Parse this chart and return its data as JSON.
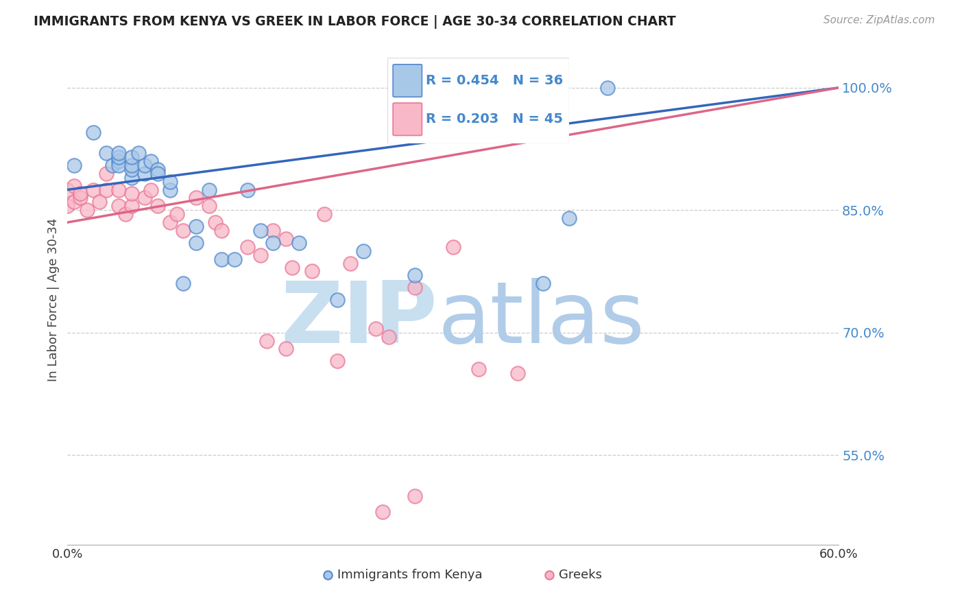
{
  "title": "IMMIGRANTS FROM KENYA VS GREEK IN LABOR FORCE | AGE 30-34 CORRELATION CHART",
  "source": "Source: ZipAtlas.com",
  "ylabel": "In Labor Force | Age 30-34",
  "xmin": 0.0,
  "xmax": 0.6,
  "ymin": 0.44,
  "ymax": 1.04,
  "yticks": [
    0.55,
    0.7,
    0.85,
    1.0
  ],
  "ytick_labels": [
    "55.0%",
    "70.0%",
    "85.0%",
    "100.0%"
  ],
  "kenya_R": 0.454,
  "kenya_N": 36,
  "greek_R": 0.203,
  "greek_N": 45,
  "kenya_color": "#a8c8e8",
  "greek_color": "#f8b8c8",
  "kenya_edge_color": "#5588cc",
  "greek_edge_color": "#e87898",
  "kenya_line_color": "#3366bb",
  "greek_line_color": "#dd6688",
  "background_color": "#ffffff",
  "watermark_zip_color": "#c8dff0",
  "watermark_atlas_color": "#b0cce8",
  "kenya_scatter_x": [
    0.005,
    0.02,
    0.03,
    0.035,
    0.04,
    0.04,
    0.04,
    0.04,
    0.05,
    0.05,
    0.05,
    0.05,
    0.055,
    0.06,
    0.06,
    0.065,
    0.07,
    0.07,
    0.08,
    0.08,
    0.09,
    0.1,
    0.1,
    0.11,
    0.12,
    0.13,
    0.14,
    0.15,
    0.16,
    0.18,
    0.21,
    0.23,
    0.27,
    0.37,
    0.39,
    0.42
  ],
  "kenya_scatter_y": [
    0.905,
    0.945,
    0.92,
    0.905,
    0.91,
    0.905,
    0.915,
    0.92,
    0.89,
    0.9,
    0.905,
    0.915,
    0.92,
    0.895,
    0.905,
    0.91,
    0.9,
    0.895,
    0.875,
    0.885,
    0.76,
    0.83,
    0.81,
    0.875,
    0.79,
    0.79,
    0.875,
    0.825,
    0.81,
    0.81,
    0.74,
    0.8,
    0.77,
    0.76,
    0.84,
    1.0
  ],
  "greek_scatter_x": [
    0.0,
    0.0,
    0.005,
    0.005,
    0.01,
    0.01,
    0.015,
    0.02,
    0.025,
    0.03,
    0.03,
    0.04,
    0.04,
    0.045,
    0.05,
    0.05,
    0.06,
    0.065,
    0.07,
    0.08,
    0.085,
    0.09,
    0.1,
    0.11,
    0.115,
    0.12,
    0.14,
    0.15,
    0.16,
    0.17,
    0.175,
    0.19,
    0.2,
    0.22,
    0.24,
    0.25,
    0.27,
    0.3,
    0.32,
    0.35,
    0.155,
    0.17,
    0.21,
    0.245,
    0.27
  ],
  "greek_scatter_y": [
    0.855,
    0.875,
    0.88,
    0.86,
    0.865,
    0.87,
    0.85,
    0.875,
    0.86,
    0.895,
    0.875,
    0.875,
    0.855,
    0.845,
    0.855,
    0.87,
    0.865,
    0.875,
    0.855,
    0.835,
    0.845,
    0.825,
    0.865,
    0.855,
    0.835,
    0.825,
    0.805,
    0.795,
    0.825,
    0.815,
    0.78,
    0.775,
    0.845,
    0.785,
    0.705,
    0.695,
    0.755,
    0.805,
    0.655,
    0.65,
    0.69,
    0.68,
    0.665,
    0.48,
    0.5
  ],
  "greek_line_x0": 0.0,
  "greek_line_y0": 0.835,
  "greek_line_x1": 0.6,
  "greek_line_y1": 1.0,
  "kenya_line_x0": 0.0,
  "kenya_line_y0": 0.875,
  "kenya_line_x1": 0.6,
  "kenya_line_y1": 1.0
}
